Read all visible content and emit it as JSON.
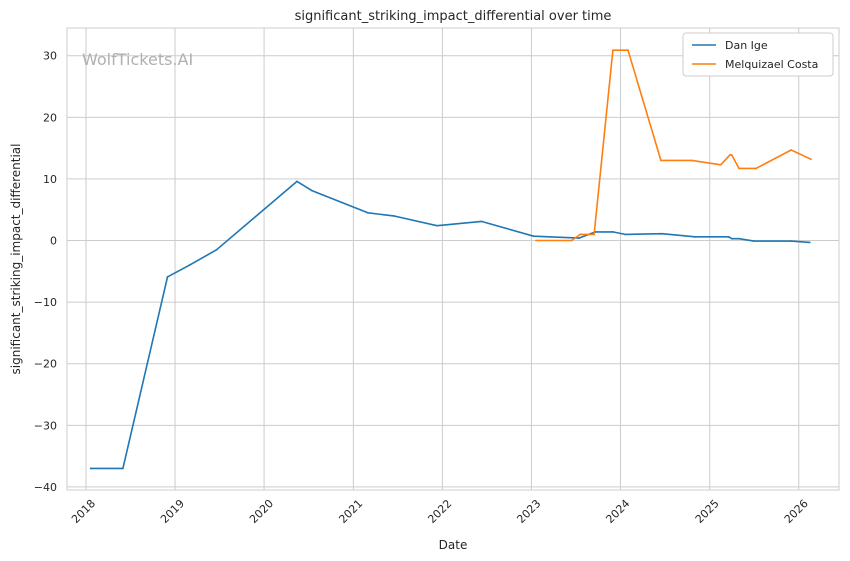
{
  "chart_data": {
    "type": "line",
    "title": "significant_striking_impact_differential over time",
    "xlabel": "Date",
    "ylabel": "significant_striking_impact_differential",
    "watermark": "WolfTickets.AI",
    "xlim": [
      "2017-10-15",
      "2026-06-15"
    ],
    "ylim": [
      -40.5,
      34.5
    ],
    "x_ticks": [
      "2018",
      "2019",
      "2020",
      "2021",
      "2022",
      "2023",
      "2024",
      "2025",
      "2026"
    ],
    "y_ticks": [
      -40,
      -30,
      -20,
      -10,
      0,
      10,
      20,
      30
    ],
    "y_tick_labels": [
      "−40",
      "−30",
      "−20",
      "−10",
      "0",
      "10",
      "20",
      "30"
    ],
    "grid": true,
    "legend_position": "top-right",
    "series": [
      {
        "name": "Dan Ige",
        "color": "#1f77b4",
        "points": [
          {
            "x": "2018-01-20",
            "y": -37.0
          },
          {
            "x": "2018-06-01",
            "y": -37.0
          },
          {
            "x": "2018-12-01",
            "y": -5.9
          },
          {
            "x": "2019-03-01",
            "y": -4.0
          },
          {
            "x": "2019-06-20",
            "y": -1.5
          },
          {
            "x": "2020-05-15",
            "y": 9.6
          },
          {
            "x": "2020-07-15",
            "y": 8.1
          },
          {
            "x": "2021-03-01",
            "y": 4.5
          },
          {
            "x": "2021-06-15",
            "y": 4.0
          },
          {
            "x": "2021-12-10",
            "y": 2.4
          },
          {
            "x": "2022-06-10",
            "y": 3.1
          },
          {
            "x": "2023-01-10",
            "y": 0.7
          },
          {
            "x": "2023-07-15",
            "y": 0.4
          },
          {
            "x": "2023-09-20",
            "y": 1.4
          },
          {
            "x": "2023-12-01",
            "y": 1.4
          },
          {
            "x": "2024-01-20",
            "y": 1.0
          },
          {
            "x": "2024-06-20",
            "y": 1.1
          },
          {
            "x": "2024-11-01",
            "y": 0.6
          },
          {
            "x": "2025-03-20",
            "y": 0.6
          },
          {
            "x": "2025-04-01",
            "y": 0.3
          },
          {
            "x": "2025-05-01",
            "y": 0.3
          },
          {
            "x": "2025-07-01",
            "y": -0.1
          },
          {
            "x": "2025-12-01",
            "y": -0.1
          },
          {
            "x": "2026-02-15",
            "y": -0.3
          }
        ]
      },
      {
        "name": "Melquizael Costa",
        "color": "#ff7f0e",
        "points": [
          {
            "x": "2023-01-20",
            "y": 0.0
          },
          {
            "x": "2023-06-15",
            "y": 0.0
          },
          {
            "x": "2023-07-20",
            "y": 1.0
          },
          {
            "x": "2023-09-15",
            "y": 1.0
          },
          {
            "x": "2023-12-01",
            "y": 30.9
          },
          {
            "x": "2024-02-01",
            "y": 30.9
          },
          {
            "x": "2024-06-15",
            "y": 13.0
          },
          {
            "x": "2024-10-20",
            "y": 13.0
          },
          {
            "x": "2025-02-15",
            "y": 12.3
          },
          {
            "x": "2025-03-25",
            "y": 13.9
          },
          {
            "x": "2025-04-01",
            "y": 13.9
          },
          {
            "x": "2025-05-01",
            "y": 11.7
          },
          {
            "x": "2025-07-10",
            "y": 11.7
          },
          {
            "x": "2025-12-01",
            "y": 14.7
          },
          {
            "x": "2026-02-20",
            "y": 13.2
          }
        ]
      }
    ]
  }
}
